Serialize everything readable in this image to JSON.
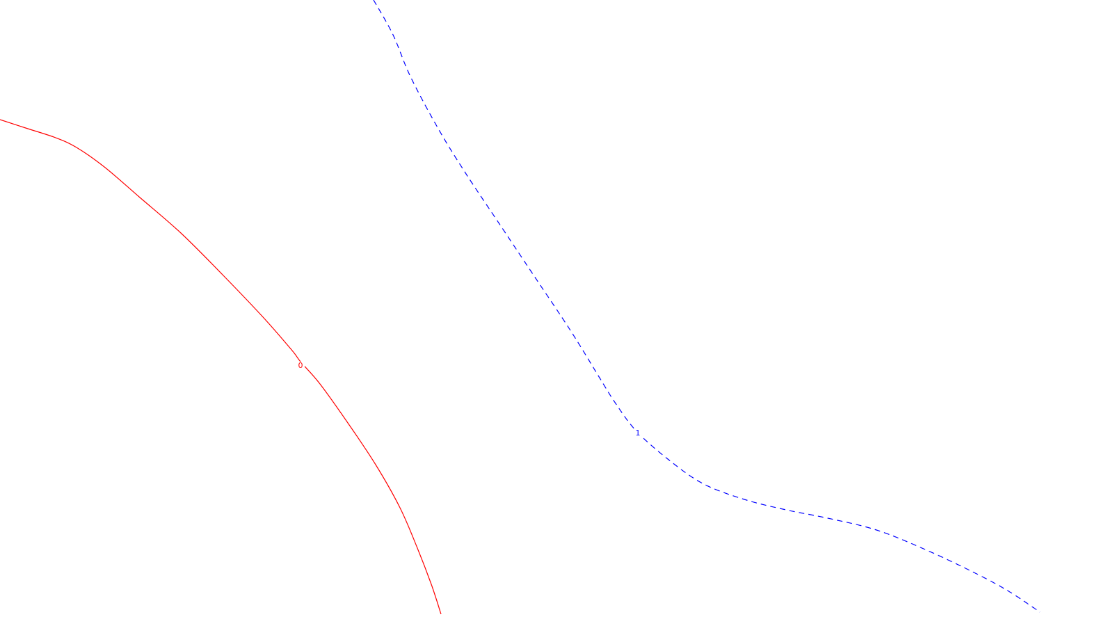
{
  "chart_data": {
    "type": "line",
    "title": "",
    "xlabel": "",
    "ylabel": "",
    "grid": false,
    "legend": "none",
    "series": [
      {
        "label": "0",
        "color": "#ff0000",
        "dash": "solid",
        "points": [
          [
            0,
            172
          ],
          [
            40,
            185
          ],
          [
            80,
            198
          ],
          [
            110,
            212
          ],
          [
            150,
            240
          ],
          [
            200,
            283
          ],
          [
            260,
            335
          ],
          [
            320,
            395
          ],
          [
            380,
            458
          ],
          [
            420,
            504
          ],
          [
            432,
            520
          ],
          [
            460,
            552
          ],
          [
            500,
            608
          ],
          [
            540,
            668
          ],
          [
            575,
            730
          ],
          [
            600,
            788
          ],
          [
            620,
            840
          ],
          [
            634,
            883
          ]
        ],
        "label_at": [
          432,
          529
        ]
      },
      {
        "label": "1",
        "color": "#0000ff",
        "dash": "dashed",
        "points": [
          [
            537,
            0
          ],
          [
            565,
            50
          ],
          [
            590,
            110
          ],
          [
            630,
            185
          ],
          [
            670,
            250
          ],
          [
            720,
            325
          ],
          [
            770,
            400
          ],
          [
            820,
            475
          ],
          [
            860,
            540
          ],
          [
            885,
            580
          ],
          [
            915,
            620
          ],
          [
            960,
            660
          ],
          [
            1010,
            695
          ],
          [
            1070,
            718
          ],
          [
            1130,
            733
          ],
          [
            1190,
            745
          ],
          [
            1260,
            762
          ],
          [
            1330,
            790
          ],
          [
            1400,
            823
          ],
          [
            1450,
            850
          ],
          [
            1495,
            880
          ]
        ],
        "label_at": [
          917,
          626
        ]
      }
    ]
  }
}
